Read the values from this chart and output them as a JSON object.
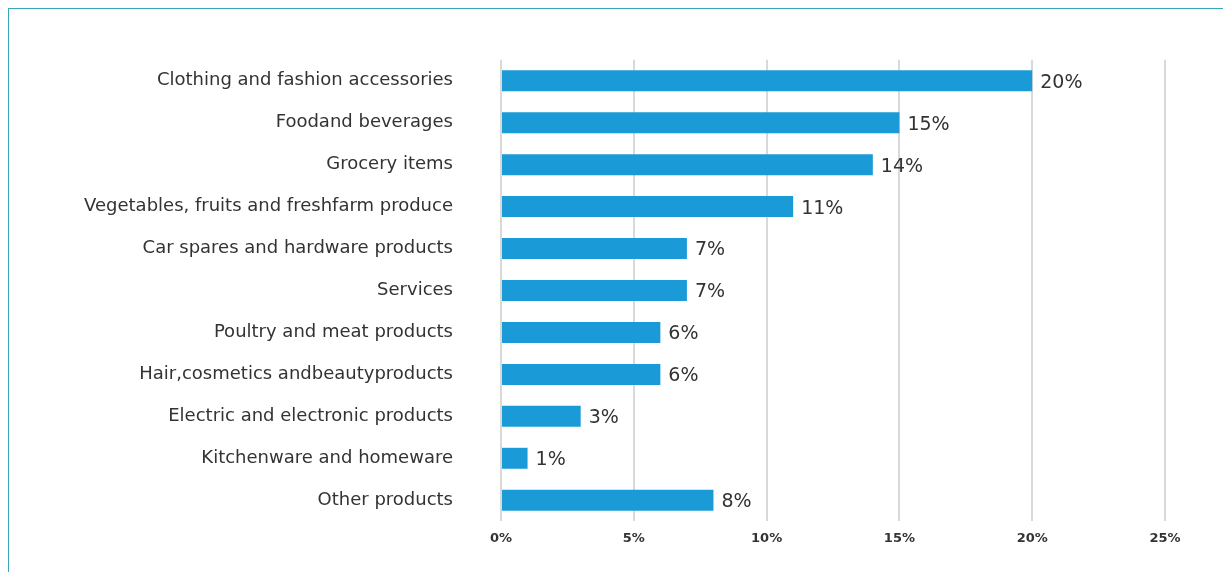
{
  "chart_data": {
    "type": "bar",
    "orientation": "horizontal",
    "categories": [
      "Clothing and fashion accessories",
      "Foodand beverages",
      "Grocery items",
      "Vegetables, fruits and freshfarm produce",
      "Car spares and hardware products",
      "Services",
      "Poultry and meat products",
      "Hair,cosmetics andbeautyproducts",
      "Electric and electronic products",
      "Kitchenware and homeware",
      "Other products"
    ],
    "values": [
      20,
      15,
      14,
      11,
      7,
      7,
      6,
      6,
      3,
      1,
      8
    ],
    "value_labels": [
      "20%",
      "15%",
      "14%",
      "11%",
      "7%",
      "7%",
      "6%",
      "6%",
      "3%",
      "1%",
      "8%"
    ],
    "color": "#1a9bd7",
    "xlim": [
      0,
      25
    ],
    "xticks": [
      {
        "value": 0,
        "label": "0%"
      },
      {
        "value": 5,
        "label": "5%"
      },
      {
        "value": 10,
        "label": "10%"
      },
      {
        "value": 15,
        "label": "15%"
      },
      {
        "value": 20,
        "label": "20%"
      },
      {
        "value": 25,
        "label": "25%"
      }
    ],
    "grid": "x",
    "legend": false
  }
}
